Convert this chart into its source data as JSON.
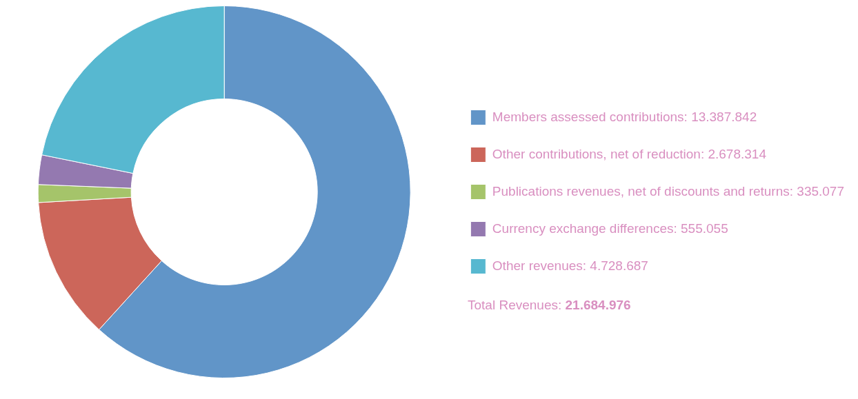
{
  "chart_data": {
    "type": "donut",
    "categories": [
      "Members assessed contributions: 13.387.842",
      "Other contributions, net of reduction: 2.678.314",
      "Publications revenues, net of discounts and returns: 335.077",
      "Currency exchange differences: 555.055",
      "Other revenues: 4.728.687"
    ],
    "values": [
      13387842,
      2678314,
      335077,
      555055,
      4728687
    ],
    "colors": [
      "#6195c8",
      "#cc665a",
      "#a5c46a",
      "#9479b0",
      "#57b8d0"
    ],
    "legend": "right",
    "annotations": [
      "Total Revenues: 21.684.976"
    ]
  }
}
